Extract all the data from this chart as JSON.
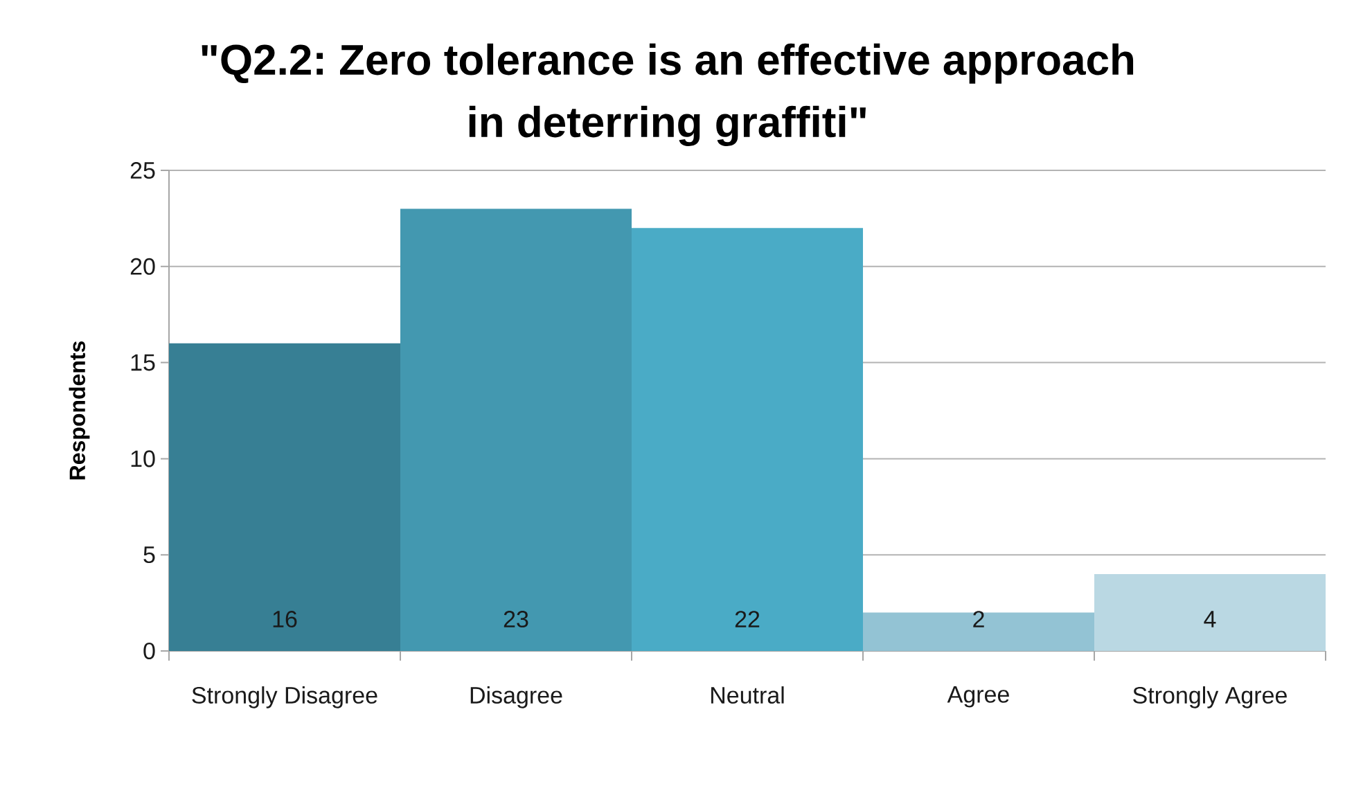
{
  "chart_data": {
    "type": "bar",
    "title": "\"Q2.2: Zero tolerance is an effective approach in deterring graffiti\"",
    "ylabel": "Respondents",
    "categories": [
      "Strongly Disagree",
      "Disagree",
      "Neutral",
      "Agree",
      "Strongly Agree"
    ],
    "values": [
      16,
      23,
      22,
      2,
      4
    ],
    "colors": [
      "#377f94",
      "#4398b0",
      "#4aabc6",
      "#93c3d4",
      "#bad8e3"
    ],
    "ylim": [
      0,
      25
    ],
    "yticks": [
      0,
      5,
      10,
      15,
      20,
      25
    ],
    "grid": "y",
    "data_labels": true
  }
}
